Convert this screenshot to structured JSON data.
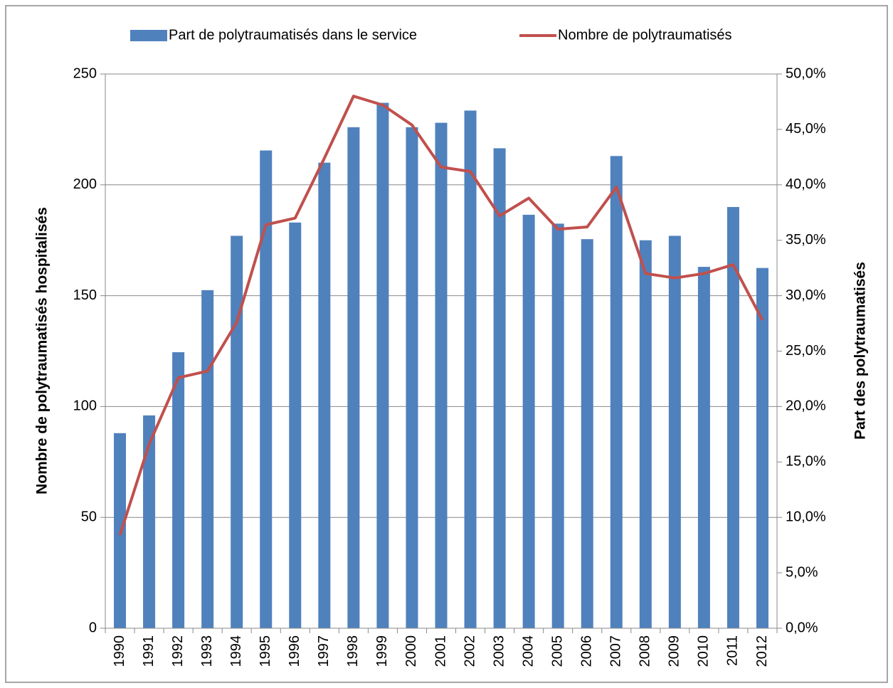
{
  "chart_data": {
    "type": "bar_line",
    "categories": [
      "1990",
      "1991",
      "1992",
      "1993",
      "1994",
      "1995",
      "1996",
      "1997",
      "1998",
      "1999",
      "2000",
      "2001",
      "2002",
      "2003",
      "2004",
      "2005",
      "2006",
      "2007",
      "2008",
      "2009",
      "2010",
      "2011",
      "2012"
    ],
    "series": [
      {
        "name": "Part de polytraumatisés dans le service",
        "type": "bar",
        "axis": "y2",
        "color": "#4f81bd",
        "values": [
          17.6,
          19.2,
          24.9,
          30.5,
          35.4,
          43.1,
          36.6,
          42.0,
          45.2,
          47.4,
          45.2,
          45.6,
          46.7,
          43.3,
          37.3,
          36.5,
          35.1,
          42.6,
          35.0,
          35.4,
          32.6,
          38.0,
          32.5
        ]
      },
      {
        "name": "Nombre de polytraumatisés",
        "type": "line",
        "axis": "y",
        "color": "#c0504d",
        "values": [
          42,
          83,
          113,
          116,
          138,
          182,
          185,
          212,
          240,
          236,
          227,
          208,
          206,
          186,
          194,
          180,
          181,
          199,
          160,
          158,
          160,
          164,
          139
        ]
      }
    ],
    "ylabel": "Nombre de polytraumatisés hospitalisés",
    "y2label": "Part des polytraumatisés",
    "ylim": [
      0,
      250
    ],
    "yticks": [
      0,
      50,
      100,
      150,
      200,
      250
    ],
    "y2lim": [
      0,
      50
    ],
    "y2ticks": [
      {
        "value": 0,
        "label": "0,0%"
      },
      {
        "value": 5,
        "label": "5,0%"
      },
      {
        "value": 10,
        "label": "10,0%"
      },
      {
        "value": 15,
        "label": "15,0%"
      },
      {
        "value": 20,
        "label": "20,0%"
      },
      {
        "value": 25,
        "label": "25,0%"
      },
      {
        "value": 30,
        "label": "30,0%"
      },
      {
        "value": 35,
        "label": "35,0%"
      },
      {
        "value": 40,
        "label": "40,0%"
      },
      {
        "value": 45,
        "label": "45,0%"
      },
      {
        "value": 50,
        "label": "50,0%"
      }
    ],
    "grid": true,
    "legend": "top"
  }
}
